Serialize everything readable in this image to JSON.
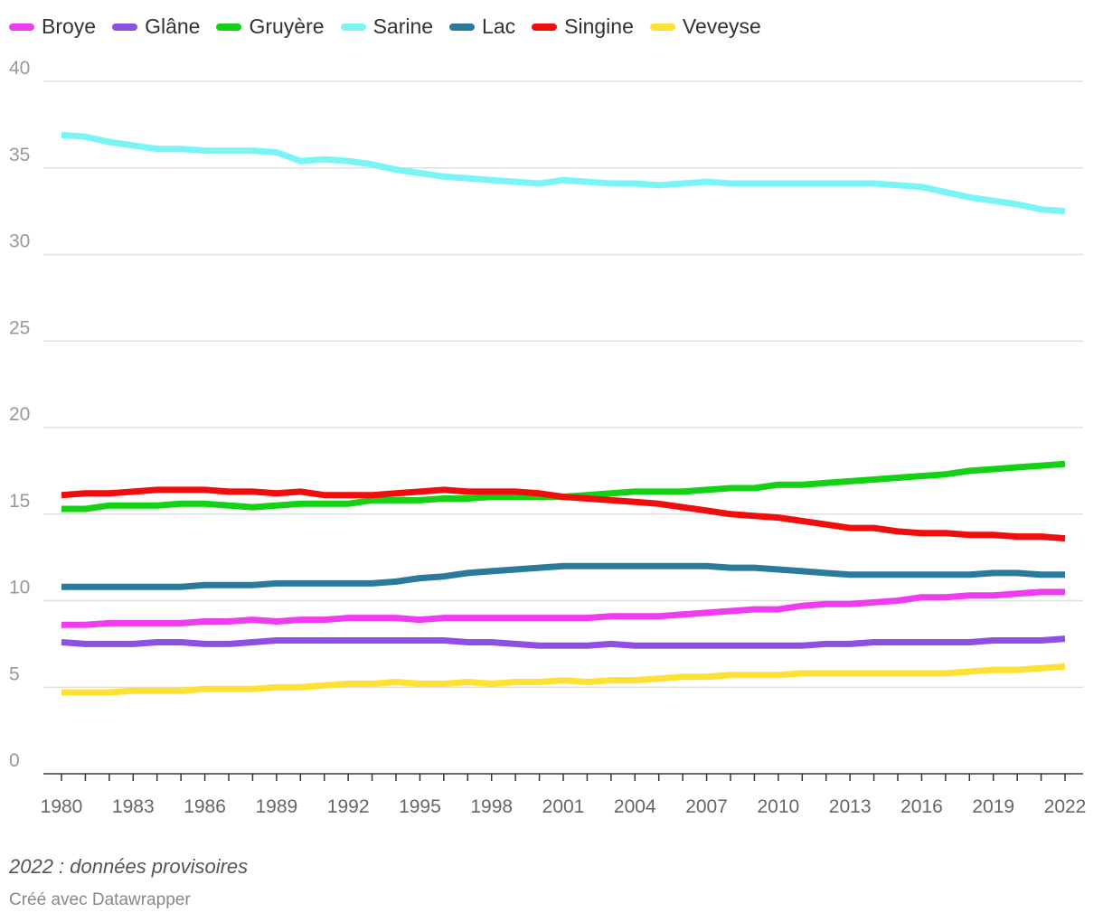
{
  "chart_data": {
    "type": "line",
    "title": "",
    "xlabel": "",
    "ylabel": "",
    "ylim": [
      0,
      40
    ],
    "yticks": [
      0,
      5,
      10,
      15,
      20,
      25,
      30,
      35,
      40
    ],
    "xtick_labels": [
      "1980",
      "1983",
      "1986",
      "1989",
      "1992",
      "1995",
      "1998",
      "2001",
      "2004",
      "2007",
      "2010",
      "2013",
      "2016",
      "2019",
      "2022"
    ],
    "x": [
      1980,
      1981,
      1982,
      1983,
      1984,
      1985,
      1986,
      1987,
      1988,
      1989,
      1990,
      1991,
      1992,
      1993,
      1994,
      1995,
      1996,
      1997,
      1998,
      1999,
      2000,
      2001,
      2002,
      2003,
      2004,
      2005,
      2006,
      2007,
      2008,
      2009,
      2010,
      2011,
      2012,
      2013,
      2014,
      2015,
      2016,
      2017,
      2018,
      2019,
      2020,
      2021,
      2022
    ],
    "series": [
      {
        "name": "Broye",
        "color": "#f03cf0",
        "values": [
          8.6,
          8.6,
          8.7,
          8.7,
          8.7,
          8.7,
          8.8,
          8.8,
          8.9,
          8.8,
          8.9,
          8.9,
          9.0,
          9.0,
          9.0,
          8.9,
          9.0,
          9.0,
          9.0,
          9.0,
          9.0,
          9.0,
          9.0,
          9.1,
          9.1,
          9.1,
          9.2,
          9.3,
          9.4,
          9.5,
          9.5,
          9.7,
          9.8,
          9.8,
          9.9,
          10.0,
          10.2,
          10.2,
          10.3,
          10.3,
          10.4,
          10.5,
          10.5
        ]
      },
      {
        "name": "Glâne",
        "color": "#8e4fe3",
        "values": [
          7.6,
          7.5,
          7.5,
          7.5,
          7.6,
          7.6,
          7.5,
          7.5,
          7.6,
          7.7,
          7.7,
          7.7,
          7.7,
          7.7,
          7.7,
          7.7,
          7.7,
          7.6,
          7.6,
          7.5,
          7.4,
          7.4,
          7.4,
          7.5,
          7.4,
          7.4,
          7.4,
          7.4,
          7.4,
          7.4,
          7.4,
          7.4,
          7.5,
          7.5,
          7.6,
          7.6,
          7.6,
          7.6,
          7.6,
          7.7,
          7.7,
          7.7,
          7.8
        ]
      },
      {
        "name": "Gruyère",
        "color": "#13d113",
        "values": [
          15.3,
          15.3,
          15.5,
          15.5,
          15.5,
          15.6,
          15.6,
          15.5,
          15.4,
          15.5,
          15.6,
          15.6,
          15.6,
          15.8,
          15.8,
          15.8,
          15.9,
          15.9,
          16.0,
          16.0,
          16.0,
          16.0,
          16.1,
          16.2,
          16.3,
          16.3,
          16.3,
          16.4,
          16.5,
          16.5,
          16.7,
          16.7,
          16.8,
          16.9,
          17.0,
          17.1,
          17.2,
          17.3,
          17.5,
          17.6,
          17.7,
          17.8,
          17.9
        ]
      },
      {
        "name": "Sarine",
        "color": "#7af5f5",
        "values": [
          36.9,
          36.8,
          36.5,
          36.3,
          36.1,
          36.1,
          36.0,
          36.0,
          36.0,
          35.9,
          35.4,
          35.5,
          35.4,
          35.2,
          34.9,
          34.7,
          34.5,
          34.4,
          34.3,
          34.2,
          34.1,
          34.3,
          34.2,
          34.1,
          34.1,
          34.0,
          34.1,
          34.2,
          34.1,
          34.1,
          34.1,
          34.1,
          34.1,
          34.1,
          34.1,
          34.0,
          33.9,
          33.6,
          33.3,
          33.1,
          32.9,
          32.6,
          32.5
        ]
      },
      {
        "name": "Lac",
        "color": "#2a7a9b",
        "values": [
          10.8,
          10.8,
          10.8,
          10.8,
          10.8,
          10.8,
          10.9,
          10.9,
          10.9,
          11.0,
          11.0,
          11.0,
          11.0,
          11.0,
          11.1,
          11.3,
          11.4,
          11.6,
          11.7,
          11.8,
          11.9,
          12.0,
          12.0,
          12.0,
          12.0,
          12.0,
          12.0,
          12.0,
          11.9,
          11.9,
          11.8,
          11.7,
          11.6,
          11.5,
          11.5,
          11.5,
          11.5,
          11.5,
          11.5,
          11.6,
          11.6,
          11.5,
          11.5
        ]
      },
      {
        "name": "Singine",
        "color": "#f00d0d",
        "values": [
          16.1,
          16.2,
          16.2,
          16.3,
          16.4,
          16.4,
          16.4,
          16.3,
          16.3,
          16.2,
          16.3,
          16.1,
          16.1,
          16.1,
          16.2,
          16.3,
          16.4,
          16.3,
          16.3,
          16.3,
          16.2,
          16.0,
          15.9,
          15.8,
          15.7,
          15.6,
          15.4,
          15.2,
          15.0,
          14.9,
          14.8,
          14.6,
          14.4,
          14.2,
          14.2,
          14.0,
          13.9,
          13.9,
          13.8,
          13.8,
          13.7,
          13.7,
          13.6
        ]
      },
      {
        "name": "Veveyse",
        "color": "#ffe135",
        "values": [
          4.7,
          4.7,
          4.7,
          4.8,
          4.8,
          4.8,
          4.9,
          4.9,
          4.9,
          5.0,
          5.0,
          5.1,
          5.2,
          5.2,
          5.3,
          5.2,
          5.2,
          5.3,
          5.2,
          5.3,
          5.3,
          5.4,
          5.3,
          5.4,
          5.4,
          5.5,
          5.6,
          5.6,
          5.7,
          5.7,
          5.7,
          5.8,
          5.8,
          5.8,
          5.8,
          5.8,
          5.8,
          5.8,
          5.9,
          6.0,
          6.0,
          6.1,
          6.2
        ]
      }
    ],
    "grid": true,
    "legend": "top-left"
  },
  "notes": {
    "footnote": "2022 : données provisoires",
    "credit": "Créé avec Datawrapper"
  }
}
